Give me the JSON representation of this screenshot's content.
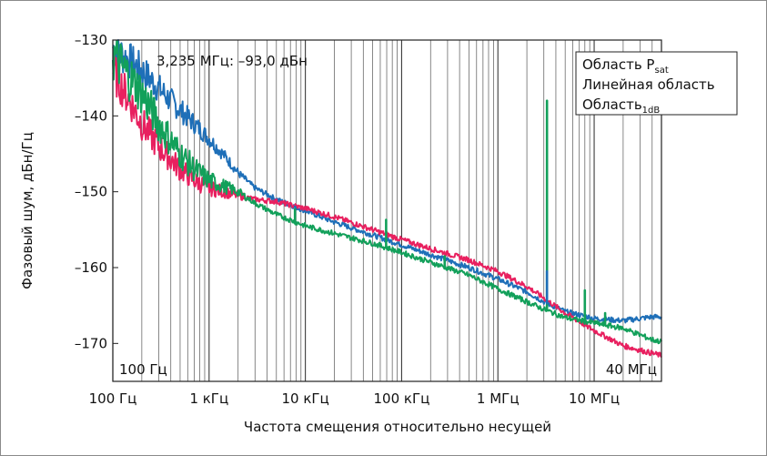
{
  "chart_data": {
    "type": "line",
    "xlabel": "Частота смещения относительно несущей",
    "ylabel": "Фазовый шум, дБн/Гц",
    "x_scale": "log",
    "xlim_hz": [
      100,
      50000000
    ],
    "ylim": [
      -175,
      -130
    ],
    "y_ticks": [
      {
        "value": -130,
        "label": "–130"
      },
      {
        "value": -140,
        "label": "–140"
      },
      {
        "value": -150,
        "label": "–150"
      },
      {
        "value": -160,
        "label": "–160"
      },
      {
        "value": -170,
        "label": "–170"
      }
    ],
    "x_ticks": [
      {
        "value": 100,
        "label": "100 Гц"
      },
      {
        "value": 1000,
        "label": "1 кГц"
      },
      {
        "value": 10000,
        "label": "10 кГц"
      },
      {
        "value": 100000,
        "label": "100  кГц"
      },
      {
        "value": 1000000,
        "label": "1 МГц"
      },
      {
        "value": 10000000,
        "label": "10 МГц"
      }
    ],
    "grid": "vertical, log minor",
    "legend_position": "top-right",
    "annotations": {
      "marker": "3,235 МГц: –93,0 дБн",
      "left_bound": "100 Гц",
      "right_bound": "40 МГц"
    },
    "series": [
      {
        "name": "Область P",
        "subscript": "sat",
        "color": "#e8205f",
        "points": [
          [
            100,
            -134
          ],
          [
            150,
            -138
          ],
          [
            200,
            -141
          ],
          [
            300,
            -144
          ],
          [
            500,
            -147
          ],
          [
            700,
            -148.5
          ],
          [
            1000,
            -149.5
          ],
          [
            2000,
            -150.5
          ],
          [
            3000,
            -151
          ],
          [
            5000,
            -151.3
          ],
          [
            10000,
            -152.2
          ],
          [
            20000,
            -153.3
          ],
          [
            50000,
            -155
          ],
          [
            100000,
            -156.3
          ],
          [
            200000,
            -157.5
          ],
          [
            500000,
            -159
          ],
          [
            1000000,
            -160.5
          ],
          [
            2000000,
            -162.5
          ],
          [
            3000000,
            -164
          ],
          [
            5000000,
            -166
          ],
          [
            10000000,
            -168.3
          ],
          [
            20000000,
            -170.3
          ],
          [
            40000000,
            -171.3
          ],
          [
            50000000,
            -171.6
          ]
        ]
      },
      {
        "name": "Линейная область",
        "subscript": "",
        "color": "#1e6fb8",
        "points": [
          [
            100,
            -131
          ],
          [
            200,
            -134
          ],
          [
            400,
            -138
          ],
          [
            700,
            -141
          ],
          [
            1000,
            -143
          ],
          [
            1500,
            -145.5
          ],
          [
            2000,
            -147.5
          ],
          [
            3000,
            -149.5
          ],
          [
            5000,
            -151
          ],
          [
            10000,
            -152.5
          ],
          [
            20000,
            -154
          ],
          [
            50000,
            -155.7
          ],
          [
            100000,
            -157
          ],
          [
            200000,
            -158.3
          ],
          [
            500000,
            -160
          ],
          [
            1000000,
            -161.5
          ],
          [
            2000000,
            -163.2
          ],
          [
            3000000,
            -164.5
          ],
          [
            5000000,
            -165.8
          ],
          [
            10000000,
            -166.7
          ],
          [
            20000000,
            -167
          ],
          [
            40000000,
            -166.5
          ],
          [
            50000000,
            -166.5
          ]
        ]
      },
      {
        "name": "Область",
        "subscript": "1dB",
        "color": "#12a05a",
        "points": [
          [
            100,
            -132
          ],
          [
            200,
            -137
          ],
          [
            300,
            -141
          ],
          [
            500,
            -145
          ],
          [
            700,
            -147
          ],
          [
            1000,
            -148.5
          ],
          [
            2000,
            -150
          ],
          [
            3000,
            -151.5
          ],
          [
            5000,
            -153
          ],
          [
            10000,
            -154.5
          ],
          [
            20000,
            -155.5
          ],
          [
            50000,
            -156.8
          ],
          [
            100000,
            -158
          ],
          [
            200000,
            -159.3
          ],
          [
            500000,
            -161
          ],
          [
            1000000,
            -162.8
          ],
          [
            2000000,
            -164.5
          ],
          [
            3000000,
            -165.5
          ],
          [
            5000000,
            -166.6
          ],
          [
            10000000,
            -167.3
          ],
          [
            20000000,
            -168
          ],
          [
            40000000,
            -169.5
          ],
          [
            50000000,
            -169.8
          ]
        ]
      }
    ],
    "spurs": [
      {
        "series": 2,
        "x": 3235000,
        "y": -138
      },
      {
        "series": 2,
        "x": 8000000,
        "y": -163
      },
      {
        "series": 2,
        "x": 13000000,
        "y": -166
      },
      {
        "series": 2,
        "x": 69000,
        "y": -153.7
      },
      {
        "series": 2,
        "x": 7800,
        "y": -152.3
      },
      {
        "series": 2,
        "x": 280000,
        "y": -158.5
      },
      {
        "series": 1,
        "x": 3235000,
        "y": -160.5
      },
      {
        "series": 1,
        "x": 7800,
        "y": -152
      }
    ]
  }
}
